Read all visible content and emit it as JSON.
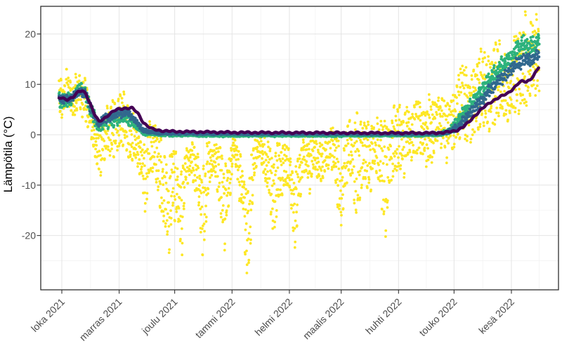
{
  "figure": {
    "background": "#ffffff",
    "panel_background": "#ffffff",
    "panel_border_color": "#2e2e2e",
    "tick_mark_color": "#333333",
    "tick_text_color": "#4d4d4d"
  },
  "chart_data": {
    "type": "scatter",
    "title": "",
    "xlabel": "",
    "ylabel": "Lämpötila (°C)",
    "x_unit": "days since 2021-10-01",
    "xlim": [
      -11.39,
      268.45
    ],
    "ylim": [
      -30.78,
      25.49
    ],
    "grid": {
      "major_color": "#e4e4e4",
      "minor_color": "#f1f1f1",
      "major_width": 1,
      "minor_width": 0.7
    },
    "legend": "none",
    "x_ticks": [
      {
        "day": 0,
        "label": "loka 2021"
      },
      {
        "day": 31,
        "label": "marras 2021"
      },
      {
        "day": 61,
        "label": "joulu 2021"
      },
      {
        "day": 92,
        "label": "tammi 2022"
      },
      {
        "day": 123,
        "label": "helmi 2022"
      },
      {
        "day": 151,
        "label": "maalis 2022"
      },
      {
        "day": 182,
        "label": "huhti 2022"
      },
      {
        "day": 212,
        "label": "touko 2022"
      },
      {
        "day": 243,
        "label": "kesä 2022"
      }
    ],
    "x_minor_days": [
      15.5,
      46,
      76.5,
      107.5,
      137,
      166.5,
      197,
      227.5,
      258
    ],
    "y_ticks": [
      {
        "value": 20,
        "label": "20"
      },
      {
        "value": 10,
        "label": "10"
      },
      {
        "value": 0,
        "label": "0"
      },
      {
        "value": -10,
        "label": "-10"
      },
      {
        "value": -20,
        "label": "-20"
      }
    ],
    "y_minor_values": [
      15,
      5,
      -5,
      -15,
      -25
    ],
    "series": [
      {
        "name": "air-temperature",
        "color": "#FDE725",
        "style": "scatter",
        "dot_radius": 1.9,
        "points_per_day": 8,
        "envelope": [
          [
            -1.5,
            4,
            10
          ],
          [
            1,
            4,
            11
          ],
          [
            3,
            5,
            13
          ],
          [
            5,
            3,
            10
          ],
          [
            7,
            4,
            11.5
          ],
          [
            9,
            5,
            12.5
          ],
          [
            12,
            4,
            11
          ],
          [
            15,
            1,
            7
          ],
          [
            18,
            -5,
            3
          ],
          [
            20,
            -8,
            2
          ],
          [
            22,
            -6,
            3
          ],
          [
            25,
            -3,
            6
          ],
          [
            28,
            -4,
            7
          ],
          [
            31,
            -3,
            8
          ],
          [
            34,
            -2,
            8.5
          ],
          [
            37,
            -5,
            5
          ],
          [
            40,
            -7,
            3
          ],
          [
            43,
            -9,
            1
          ],
          [
            45,
            -15.5,
            -1
          ],
          [
            47,
            -9,
            2
          ],
          [
            50,
            -8,
            3
          ],
          [
            52,
            -13,
            0
          ],
          [
            55,
            -20,
            -3
          ],
          [
            58,
            -23.5,
            -7
          ],
          [
            60,
            -14,
            -2
          ],
          [
            63,
            -20,
            -5
          ],
          [
            65,
            -24,
            -8
          ],
          [
            67,
            -12,
            -2
          ],
          [
            70,
            -7,
            -1
          ],
          [
            72,
            -10,
            -2
          ],
          [
            74,
            -16,
            -4
          ],
          [
            76,
            -24.5,
            -9
          ],
          [
            78,
            -18,
            -4
          ],
          [
            80,
            -9,
            -1
          ],
          [
            83,
            -8,
            0
          ],
          [
            85,
            -14,
            -2
          ],
          [
            88,
            -22,
            -7
          ],
          [
            90,
            -15,
            -3
          ],
          [
            93,
            -6,
            0
          ],
          [
            95,
            -9,
            -1
          ],
          [
            98,
            -18,
            -5
          ],
          [
            100,
            -28.5,
            -13
          ],
          [
            102,
            -22,
            -6
          ],
          [
            104,
            -10,
            -1
          ],
          [
            106,
            -4,
            2
          ],
          [
            109,
            -8,
            0
          ],
          [
            112,
            -13,
            -2
          ],
          [
            114,
            -20,
            -5
          ],
          [
            117,
            -13,
            -1
          ],
          [
            120,
            -10,
            -1
          ],
          [
            123,
            -13,
            -2
          ],
          [
            126,
            -23,
            -8
          ],
          [
            128,
            -15,
            -3
          ],
          [
            131,
            -8,
            0
          ],
          [
            134,
            -11,
            -1
          ],
          [
            137,
            -8,
            0
          ],
          [
            140,
            -11,
            -1
          ],
          [
            143,
            -6,
            1
          ],
          [
            145,
            -5,
            2
          ],
          [
            148,
            -10,
            1
          ],
          [
            151,
            -20,
            -4
          ],
          [
            153,
            -12,
            0
          ],
          [
            155,
            -8,
            2
          ],
          [
            158,
            -13,
            2
          ],
          [
            160,
            -18,
            3
          ],
          [
            163,
            -9,
            4
          ],
          [
            166,
            -12,
            2
          ],
          [
            169,
            -7,
            4
          ],
          [
            172,
            -10,
            3
          ],
          [
            175,
            -20.5,
            2
          ],
          [
            178,
            -10,
            3
          ],
          [
            181,
            -7,
            5
          ],
          [
            184,
            -8,
            5
          ],
          [
            187,
            -7,
            6
          ],
          [
            190,
            -6,
            6
          ],
          [
            193,
            -4,
            7
          ],
          [
            196,
            -7,
            6
          ],
          [
            199,
            -5,
            7
          ],
          [
            202,
            -4,
            7.5
          ],
          [
            205,
            -3,
            8
          ],
          [
            208,
            -4,
            7
          ],
          [
            211,
            -3,
            9
          ],
          [
            214,
            -1,
            11
          ],
          [
            216,
            0,
            14.5
          ],
          [
            219,
            -1,
            12
          ],
          [
            222,
            0,
            12
          ],
          [
            225,
            1,
            15
          ],
          [
            228,
            2,
            16
          ],
          [
            231,
            1,
            14
          ],
          [
            234,
            3,
            19
          ],
          [
            236,
            4,
            21
          ],
          [
            238,
            3,
            17
          ],
          [
            241,
            2,
            15
          ],
          [
            244,
            4,
            18
          ],
          [
            247,
            5,
            21
          ],
          [
            250,
            6,
            23.5
          ],
          [
            252,
            6,
            20
          ],
          [
            255,
            8,
            22
          ],
          [
            258,
            8,
            22.5
          ]
        ]
      },
      {
        "name": "soil-shallow",
        "color": "#2DB27D",
        "style": "scatter",
        "dot_radius": 2.1,
        "points_per_day": 6,
        "band": [
          [
            -1.5,
            6.6,
            1.3
          ],
          [
            0,
            6.8,
            1.4
          ],
          [
            4,
            7.0,
            1.5
          ],
          [
            8,
            8.2,
            1.3
          ],
          [
            10,
            8.8,
            1.2
          ],
          [
            13,
            7.8,
            1.3
          ],
          [
            16,
            4.5,
            1.6
          ],
          [
            20,
            1.3,
            1.1
          ],
          [
            23,
            2.4,
            1.3
          ],
          [
            27,
            3.1,
            1.4
          ],
          [
            31,
            3.6,
            1.3
          ],
          [
            36,
            3.4,
            1.2
          ],
          [
            40,
            1.8,
            0.9
          ],
          [
            44,
            0.5,
            0.5
          ],
          [
            48,
            0.2,
            0.35
          ],
          [
            55,
            0,
            0.3
          ],
          [
            70,
            -0.1,
            0.25
          ],
          [
            100,
            -0.15,
            0.2
          ],
          [
            150,
            -0.15,
            0.2
          ],
          [
            195,
            -0.1,
            0.2
          ],
          [
            205,
            0.2,
            0.3
          ],
          [
            209,
            0.7,
            0.6
          ],
          [
            212,
            1.8,
            1.0
          ],
          [
            215,
            3.0,
            1.3
          ],
          [
            218,
            4.3,
            1.4
          ],
          [
            221,
            5.8,
            1.5
          ],
          [
            224,
            7.3,
            1.5
          ],
          [
            227,
            8.8,
            1.5
          ],
          [
            230,
            10.2,
            1.5
          ],
          [
            233,
            11.6,
            1.6
          ],
          [
            236,
            13.0,
            1.6
          ],
          [
            239,
            13.8,
            1.6
          ],
          [
            242,
            14.8,
            1.7
          ],
          [
            245,
            16.2,
            1.8
          ],
          [
            248,
            17.6,
            1.9
          ],
          [
            250,
            18.2,
            1.8
          ],
          [
            252,
            16.8,
            1.7
          ],
          [
            254,
            17.4,
            1.7
          ],
          [
            256,
            18.0,
            1.7
          ],
          [
            258,
            18.4,
            1.6
          ]
        ]
      },
      {
        "name": "soil-mid",
        "color": "#31688E",
        "style": "scatter",
        "dot_radius": 2.1,
        "points_per_day": 5,
        "band": [
          [
            -1.5,
            7.0,
            0.7
          ],
          [
            0,
            7.1,
            0.7
          ],
          [
            4,
            7.3,
            0.8
          ],
          [
            8,
            8.3,
            0.7
          ],
          [
            10,
            8.7,
            0.7
          ],
          [
            13,
            8.0,
            0.8
          ],
          [
            16,
            5.2,
            1.0
          ],
          [
            20,
            2.1,
            0.8
          ],
          [
            23,
            3.0,
            0.9
          ],
          [
            27,
            3.9,
            0.8
          ],
          [
            31,
            4.4,
            0.8
          ],
          [
            36,
            4.2,
            0.7
          ],
          [
            40,
            2.6,
            0.6
          ],
          [
            44,
            1.0,
            0.4
          ],
          [
            48,
            0.5,
            0.3
          ],
          [
            55,
            0.35,
            0.25
          ],
          [
            70,
            0.25,
            0.2
          ],
          [
            100,
            0.15,
            0.15
          ],
          [
            150,
            0.15,
            0.15
          ],
          [
            198,
            0.15,
            0.15
          ],
          [
            207,
            0.35,
            0.25
          ],
          [
            211,
            0.9,
            0.45
          ],
          [
            214,
            1.7,
            0.7
          ],
          [
            217,
            2.8,
            0.9
          ],
          [
            220,
            4.0,
            1.0
          ],
          [
            223,
            5.3,
            1.0
          ],
          [
            226,
            6.6,
            1.0
          ],
          [
            229,
            7.9,
            1.0
          ],
          [
            232,
            9.2,
            1.0
          ],
          [
            235,
            10.4,
            1.0
          ],
          [
            238,
            11.3,
            1.0
          ],
          [
            241,
            12.2,
            1.1
          ],
          [
            244,
            13.3,
            1.1
          ],
          [
            247,
            14.4,
            1.1
          ],
          [
            250,
            15.0,
            1.1
          ],
          [
            252,
            14.6,
            1.0
          ],
          [
            254,
            15.1,
            1.0
          ],
          [
            256,
            15.7,
            1.0
          ],
          [
            258,
            16.1,
            1.0
          ]
        ]
      },
      {
        "name": "soil-deep",
        "color": "#440154",
        "style": "line",
        "line_width": 4.4,
        "line": [
          [
            -1.5,
            7.3
          ],
          [
            0,
            7.2
          ],
          [
            3,
            7.0
          ],
          [
            6,
            7.5
          ],
          [
            9,
            8.5
          ],
          [
            11,
            8.7
          ],
          [
            13,
            8.2
          ],
          [
            16,
            5.6
          ],
          [
            18,
            3.8
          ],
          [
            20,
            2.6
          ],
          [
            22,
            3.0
          ],
          [
            25,
            3.9
          ],
          [
            28,
            4.7
          ],
          [
            31,
            5.1
          ],
          [
            34,
            5.3
          ],
          [
            38,
            5.3
          ],
          [
            41,
            4.3
          ],
          [
            44,
            2.5
          ],
          [
            46,
            1.8
          ],
          [
            49,
            1.1
          ],
          [
            53,
            0.85
          ],
          [
            60,
            0.65
          ],
          [
            75,
            0.55
          ],
          [
            95,
            0.45
          ],
          [
            130,
            0.4
          ],
          [
            170,
            0.35
          ],
          [
            200,
            0.35
          ],
          [
            207,
            0.45
          ],
          [
            211,
            0.65
          ],
          [
            214,
            0.95
          ],
          [
            217,
            1.55
          ],
          [
            220,
            2.5
          ],
          [
            223,
            3.7
          ],
          [
            226,
            4.8
          ],
          [
            229,
            5.7
          ],
          [
            232,
            6.5
          ],
          [
            235,
            7.2
          ],
          [
            238,
            7.7
          ],
          [
            241,
            8.2
          ],
          [
            244,
            9.2
          ],
          [
            247,
            10.3
          ],
          [
            249,
            10.6
          ],
          [
            251,
            10.5
          ],
          [
            253,
            10.9
          ],
          [
            255,
            11.8
          ],
          [
            257,
            12.9
          ],
          [
            258,
            13.5
          ]
        ]
      }
    ]
  }
}
